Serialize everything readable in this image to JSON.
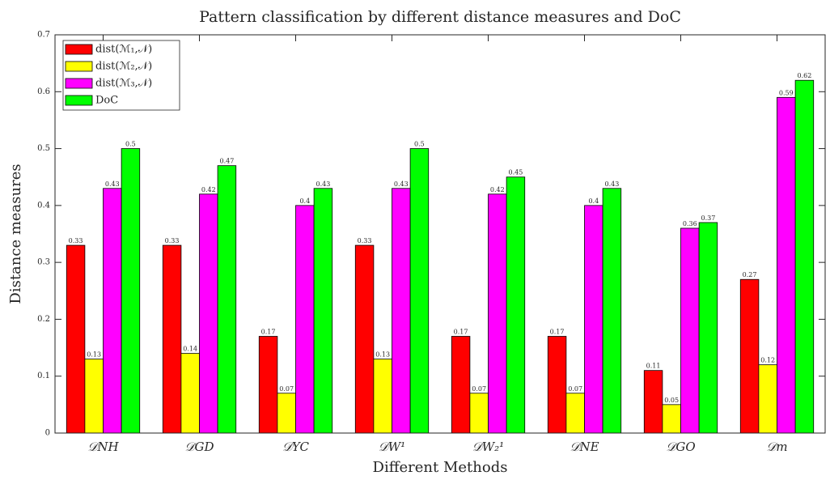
{
  "chart_data": {
    "type": "bar",
    "title": "Pattern classification by different distance measures and DoC",
    "x_label": "Different Methods",
    "y_label": "Distance measures",
    "categories": [
      "𝒟NH",
      "𝒟GD",
      "𝒟YC",
      "𝒟W¹",
      "𝒟W₂¹",
      "𝒟NE",
      "𝒟GO",
      "𝒟m"
    ],
    "series": [
      {
        "name": "dist(ℳ₁,𝒩)",
        "color": "#ff0000",
        "values": [
          0.33,
          0.33,
          0.17,
          0.33,
          0.17,
          0.17,
          0.11,
          0.27
        ]
      },
      {
        "name": "dist(ℳ₂,𝒩)",
        "color": "#ffff00",
        "values": [
          0.13,
          0.14,
          0.07,
          0.13,
          0.07,
          0.07,
          0.05,
          0.12
        ]
      },
      {
        "name": "dist(ℳ₃,𝒩)",
        "color": "#ff00ff",
        "values": [
          0.43,
          0.42,
          0.4,
          0.43,
          0.42,
          0.4,
          0.36,
          0.59
        ]
      },
      {
        "name": "DoC",
        "color": "#00ff00",
        "values": [
          0.5,
          0.47,
          0.43,
          0.5,
          0.45,
          0.43,
          0.37,
          0.62
        ]
      }
    ],
    "ylim": [
      0,
      0.7
    ],
    "yticks": [
      0,
      0.1,
      0.2,
      0.3,
      0.4,
      0.5,
      0.6,
      0.7
    ],
    "legend": "upper-left"
  }
}
